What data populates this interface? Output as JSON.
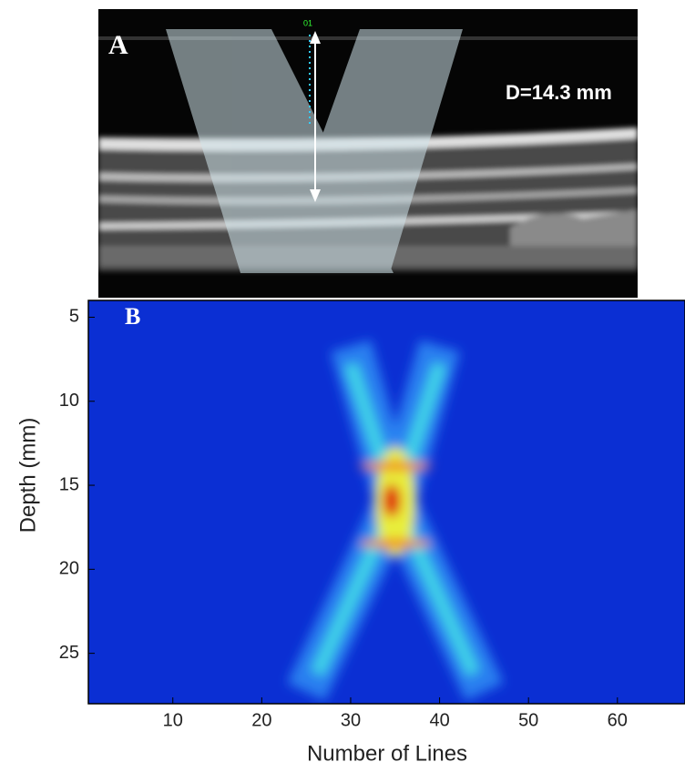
{
  "image_panel": {
    "label": "A",
    "annotation": "D=14.3 mm",
    "marker": "01"
  },
  "chart_data": {
    "type": "heatmap",
    "panel_label": "B",
    "xlabel": "Number of Lines",
    "ylabel": "Depth (mm)",
    "xlim": [
      0.5,
      67.6
    ],
    "ylim": [
      4,
      28
    ],
    "y_inverted": true,
    "xticks": [
      10,
      20,
      30,
      40,
      50,
      60
    ],
    "yticks": [
      5,
      10,
      15,
      20,
      25
    ]
  }
}
